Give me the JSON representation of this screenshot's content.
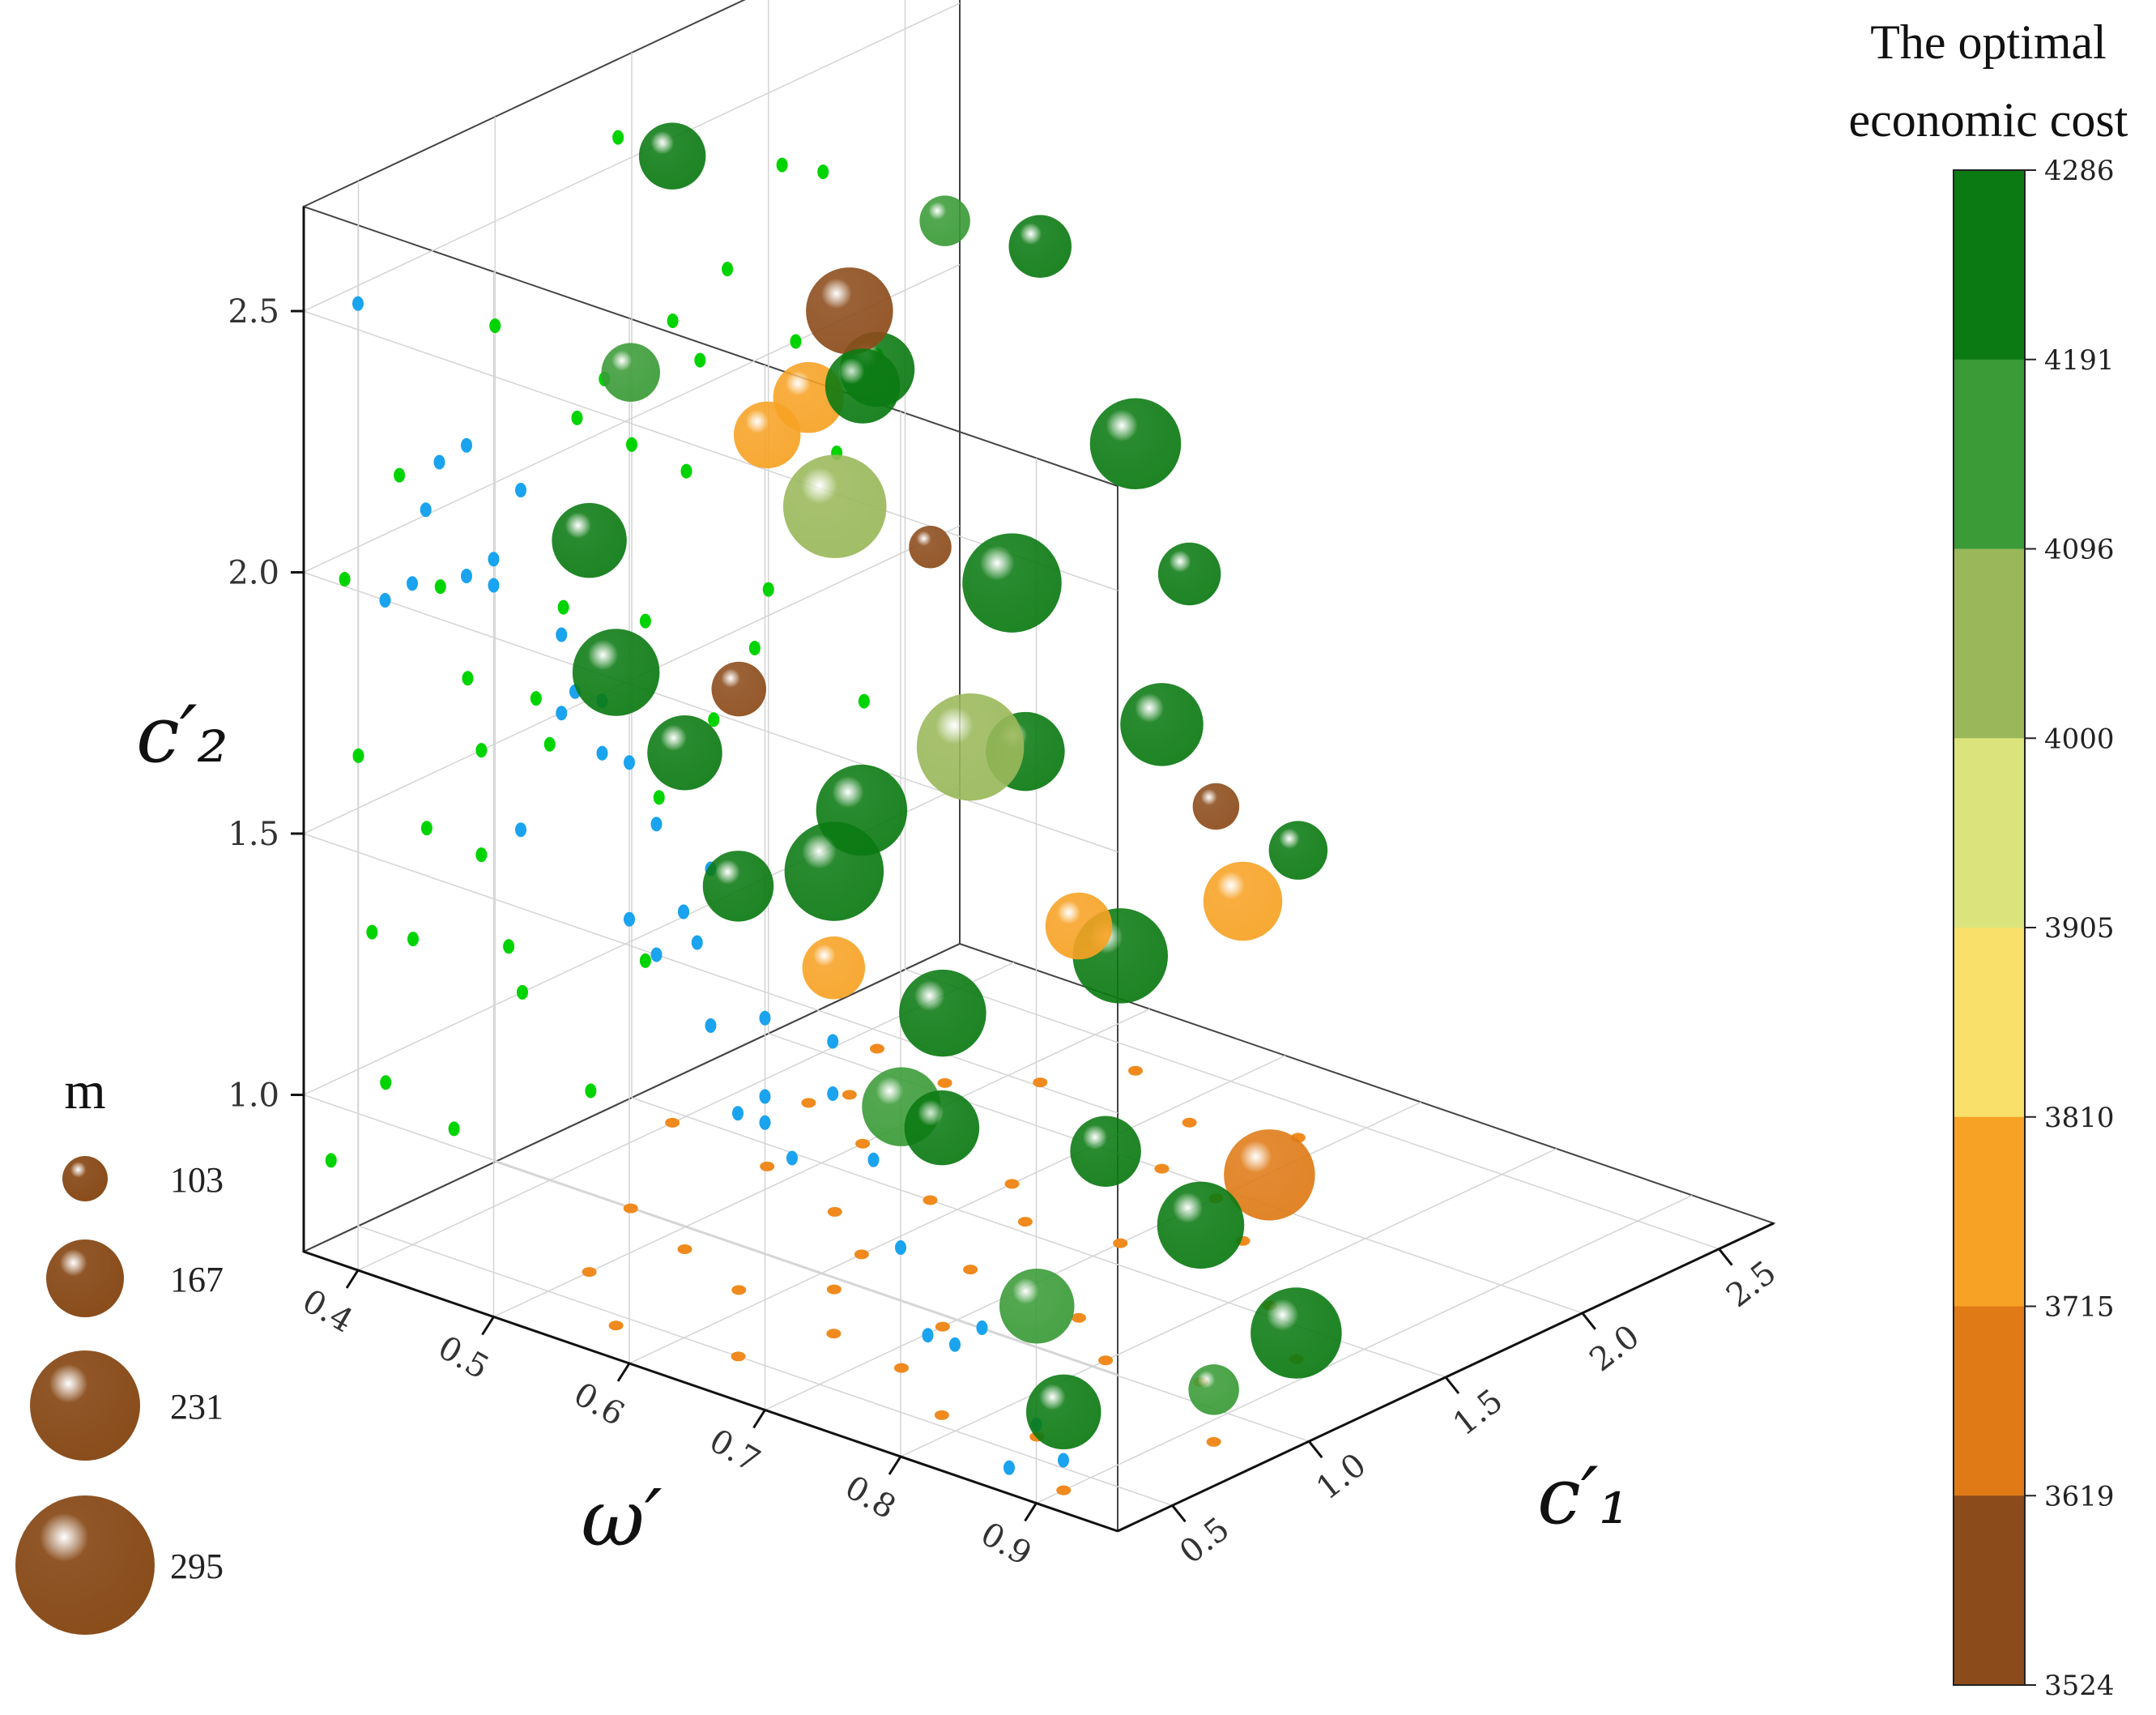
{
  "chart_data": {
    "type": "scatter",
    "variant": "3d-bubble",
    "title": "",
    "axes": {
      "x": {
        "label": "c′₁",
        "ticks": [
          "0.5",
          "1.0",
          "1.5",
          "2.0",
          "2.5"
        ],
        "range": [
          0.3,
          2.7
        ]
      },
      "y": {
        "label": "ω′",
        "ticks": [
          "0.4",
          "0.5",
          "0.6",
          "0.7",
          "0.8",
          "0.9"
        ],
        "range": [
          0.36,
          0.96
        ]
      },
      "z": {
        "label": "c′₂",
        "ticks": [
          "1.0",
          "1.5",
          "2.0",
          "2.5"
        ],
        "range": [
          0.7,
          2.7
        ]
      }
    },
    "grid": true,
    "projections": {
      "back_wall": "#00d400",
      "side_wall": "#1aa3ee",
      "floor": "#f08a1e"
    },
    "colorbar": {
      "title_lines": [
        "The optimal",
        "economic cost"
      ],
      "ticks": [
        "4286",
        "4191",
        "4096",
        "4000",
        "3905",
        "3810",
        "3715",
        "3619",
        "3524"
      ],
      "colors_top_to_bottom": [
        "#0b7a12",
        "#3a9b37",
        "#9ab85a",
        "#dbe47c",
        "#f8e06a",
        "#f7a224",
        "#df7a16",
        "#8c4b1a"
      ]
    },
    "size_legend": {
      "title": "m",
      "entries": [
        {
          "value": 103,
          "label": "103"
        },
        {
          "value": 167,
          "label": "167"
        },
        {
          "value": 231,
          "label": "231"
        },
        {
          "value": 295,
          "label": "295"
        }
      ],
      "color": "#8a4d1c"
    },
    "points": [
      {
        "c1": 1.4,
        "w": 0.48,
        "c2": 2.1,
        "m": 180,
        "cost": 3750
      },
      {
        "c1": 0.95,
        "w": 0.62,
        "c2": 1.5,
        "m": 260,
        "cost": 4220
      },
      {
        "c1": 1.6,
        "w": 0.7,
        "c2": 1.25,
        "m": 250,
        "cost": 4240
      },
      {
        "c1": 2.2,
        "w": 0.52,
        "c2": 2.3,
        "m": 170,
        "cost": 4250
      },
      {
        "c1": 1.85,
        "w": 0.45,
        "c2": 2.2,
        "m": 230,
        "cost": 3560
      },
      {
        "c1": 1.1,
        "w": 0.86,
        "c2": 1.0,
        "m": 230,
        "cost": 4250
      },
      {
        "c1": 0.6,
        "w": 0.84,
        "c2": 0.95,
        "m": 200,
        "cost": 4130
      },
      {
        "c1": 1.3,
        "w": 0.55,
        "c2": 2.05,
        "m": 270,
        "cost": 4050
      },
      {
        "c1": 0.9,
        "w": 0.52,
        "c2": 1.65,
        "m": 200,
        "cost": 4220
      },
      {
        "c1": 2.0,
        "w": 0.65,
        "c2": 1.55,
        "m": 220,
        "cost": 4230
      },
      {
        "c1": 1.2,
        "w": 0.75,
        "c2": 1.45,
        "m": 180,
        "cost": 3740
      },
      {
        "c1": 1.7,
        "w": 0.6,
        "c2": 1.85,
        "m": 260,
        "cost": 4200
      },
      {
        "c1": 0.7,
        "w": 0.72,
        "c2": 1.2,
        "m": 210,
        "cost": 4150
      },
      {
        "c1": 1.55,
        "w": 0.82,
        "c2": 0.95,
        "m": 240,
        "cost": 3700
      },
      {
        "c1": 0.8,
        "w": 0.58,
        "c2": 1.85,
        "m": 150,
        "cost": 3560
      },
      {
        "c1": 2.1,
        "w": 0.42,
        "c2": 2.0,
        "m": 200,
        "cost": 4240
      },
      {
        "c1": 1.45,
        "w": 0.4,
        "c2": 2.55,
        "m": 180,
        "cost": 4260
      },
      {
        "c1": 0.5,
        "w": 0.64,
        "c2": 1.6,
        "m": 190,
        "cost": 4200
      },
      {
        "c1": 1.0,
        "w": 0.46,
        "c2": 2.3,
        "m": 160,
        "cost": 4120
      },
      {
        "c1": 1.8,
        "w": 0.75,
        "c2": 1.35,
        "m": 210,
        "cost": 3720
      },
      {
        "c1": 0.4,
        "w": 0.9,
        "c2": 0.85,
        "m": 200,
        "cost": 4230
      },
      {
        "c1": 1.25,
        "w": 0.66,
        "c2": 1.7,
        "m": 280,
        "cost": 4080
      },
      {
        "c1": 2.4,
        "w": 0.55,
        "c2": 1.9,
        "m": 240,
        "cost": 4220
      },
      {
        "c1": 0.65,
        "w": 0.5,
        "c2": 2.1,
        "m": 200,
        "cost": 4230
      },
      {
        "c1": 1.05,
        "w": 0.8,
        "c2": 1.1,
        "m": 190,
        "cost": 4230
      },
      {
        "c1": 1.5,
        "w": 0.58,
        "c2": 1.95,
        "m": 120,
        "cost": 3600
      },
      {
        "c1": 0.55,
        "w": 0.78,
        "c2": 1.25,
        "m": 200,
        "cost": 4220
      },
      {
        "c1": 1.95,
        "w": 0.7,
        "c2": 1.45,
        "m": 130,
        "cost": 3560
      },
      {
        "c1": 0.85,
        "w": 0.92,
        "c2": 0.8,
        "m": 140,
        "cost": 4100
      },
      {
        "c1": 1.65,
        "w": 0.5,
        "c2": 2.15,
        "m": 200,
        "cost": 4230
      },
      {
        "c1": 2.25,
        "w": 0.62,
        "c2": 1.75,
        "m": 170,
        "cost": 4240
      },
      {
        "c1": 1.15,
        "w": 0.6,
        "c2": 1.55,
        "m": 240,
        "cost": 4220
      },
      {
        "c1": 0.75,
        "w": 0.66,
        "c2": 1.4,
        "m": 170,
        "cost": 3730
      },
      {
        "c1": 1.35,
        "w": 0.88,
        "c2": 0.75,
        "m": 240,
        "cost": 4220
      },
      {
        "c1": 2.05,
        "w": 0.48,
        "c2": 2.35,
        "m": 140,
        "cost": 4120
      },
      {
        "c1": 0.45,
        "w": 0.56,
        "c2": 1.95,
        "m": 230,
        "cost": 4230
      },
      {
        "c1": 1.75,
        "w": 0.44,
        "c2": 2.05,
        "m": 190,
        "cost": 3740
      },
      {
        "c1": 0.95,
        "w": 0.7,
        "c2": 1.3,
        "m": 230,
        "cost": 4220
      },
      {
        "c1": 1.55,
        "w": 0.64,
        "c2": 1.6,
        "m": 210,
        "cost": 4230
      },
      {
        "c1": 2.35,
        "w": 0.68,
        "c2": 1.25,
        "m": 160,
        "cost": 4220
      }
    ]
  }
}
